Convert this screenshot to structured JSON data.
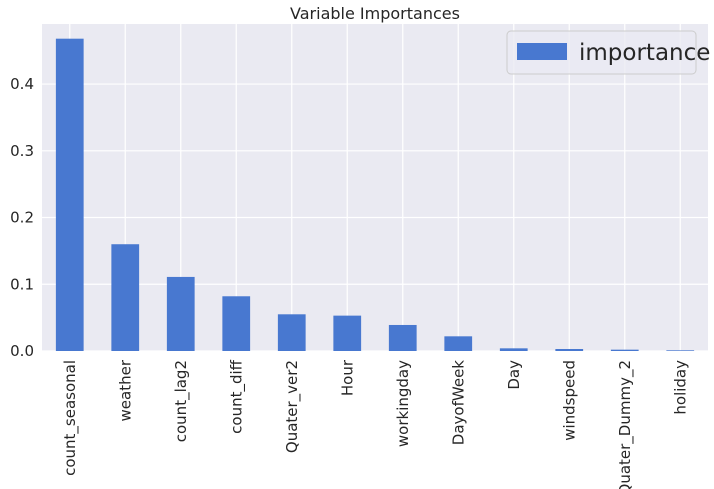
{
  "chart_data": {
    "type": "bar",
    "title": "Variable Importances",
    "categories": [
      "count_seasonal",
      "weather",
      "count_lag2",
      "count_diff",
      "Quater_ver2",
      "Hour",
      "workingday",
      "DayofWeek",
      "Day",
      "windspeed",
      "Quater_Dummy_2",
      "holiday"
    ],
    "series": [
      {
        "name": "importance",
        "values": [
          0.468,
          0.16,
          0.111,
          0.082,
          0.055,
          0.053,
          0.039,
          0.022,
          0.004,
          0.003,
          0.002,
          0.001
        ]
      }
    ],
    "yticks": [
      "0.0",
      "0.1",
      "0.2",
      "0.3",
      "0.4"
    ],
    "ylim": [
      0,
      0.49
    ],
    "grid": true,
    "legend_position": "top-right",
    "colors": {
      "bar": "#4878d0",
      "plot_background": "#eaeaf2",
      "grid": "#ffffff"
    }
  }
}
